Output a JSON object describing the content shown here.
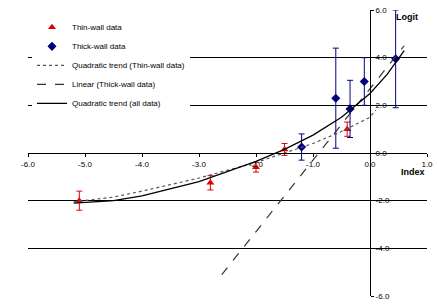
{
  "chart_data": {
    "type": "scatter",
    "x_label": "Index",
    "y_label": "Logit",
    "xlim": [
      -6,
      1
    ],
    "ylim": [
      -6,
      6
    ],
    "xticks": [
      {
        "value": -6,
        "label": "-6.0"
      },
      {
        "value": -5,
        "label": "-5.0"
      },
      {
        "value": -4,
        "label": "-4.0"
      },
      {
        "value": -3,
        "label": "-3.0"
      },
      {
        "value": -2,
        "label": "-2.0"
      },
      {
        "value": -1,
        "label": "-1.0"
      },
      {
        "value": 0,
        "label": "0.0"
      },
      {
        "value": 1,
        "label": "1.0"
      }
    ],
    "yticks": [
      {
        "value": -6,
        "label": "-6.0"
      },
      {
        "value": -4,
        "label": "-4.0"
      },
      {
        "value": -2,
        "label": "-2.0"
      },
      {
        "value": 0,
        "label": "0.0"
      },
      {
        "value": 2,
        "label": "2.0"
      },
      {
        "value": 4,
        "label": "4.0"
      },
      {
        "value": 6,
        "label": "6.0"
      }
    ],
    "grid": true,
    "legend": "top left",
    "series": [
      {
        "name": "Thin-wall data",
        "type": "scatter",
        "color": "#e00000",
        "marker": "triangle-up",
        "x": [
          -5.1,
          -2.8,
          -2.0,
          -1.5,
          -0.4
        ],
        "values": [
          -2.0,
          -1.25,
          -0.6,
          0.15,
          1.0
        ],
        "errors": [
          0.4,
          0.3,
          0.2,
          0.25,
          0.3
        ]
      },
      {
        "name": "Thick-wall data",
        "type": "scatter",
        "color": "#000080",
        "marker": "diamond",
        "x": [
          -1.2,
          -0.6,
          -0.35,
          -0.1,
          0.45
        ],
        "values": [
          0.25,
          2.3,
          1.85,
          3.0,
          3.95
        ],
        "errors": [
          0.55,
          2.1,
          1.2,
          1.0,
          2.05
        ]
      },
      {
        "name": "Quadratic trend (Thin-wall data)",
        "type": "line",
        "color": "#555555",
        "line_style": "dotted",
        "x": [
          -5.2,
          -4.5,
          -4.0,
          -3.0,
          -2.0,
          -1.5,
          -1.0,
          -0.5,
          0.0,
          0.1
        ],
        "values": [
          -2.05,
          -1.85,
          -1.6,
          -1.05,
          -0.4,
          0.0,
          0.4,
          0.9,
          1.5,
          1.8
        ]
      },
      {
        "name": "Linear (Thick-wall data)",
        "type": "line",
        "color": "#333333",
        "line_style": "dashed",
        "x": [
          -2.6,
          0.6
        ],
        "values": [
          -5.1,
          4.5
        ]
      },
      {
        "name": "Quadratic trend (all data)",
        "type": "line",
        "color": "#000000",
        "line_style": "solid",
        "x": [
          -5.2,
          -4.5,
          -4.0,
          -3.0,
          -2.0,
          -1.5,
          -1.0,
          -0.5,
          0.0,
          0.3,
          0.6
        ],
        "values": [
          -2.1,
          -2.0,
          -1.8,
          -1.2,
          -0.35,
          0.15,
          0.75,
          1.5,
          2.5,
          3.3,
          4.3
        ]
      }
    ]
  }
}
